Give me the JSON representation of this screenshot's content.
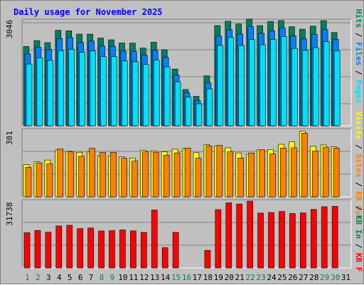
{
  "chart_data": [
    {
      "type": "bar",
      "title": "Daily usage for November 2025",
      "categories": [
        "1",
        "2",
        "3",
        "4",
        "5",
        "6",
        "7",
        "8",
        "9",
        "10",
        "11",
        "12",
        "13",
        "14",
        "15",
        "16",
        "17",
        "18",
        "19",
        "20",
        "21",
        "22",
        "23",
        "24",
        "25",
        "26",
        "27",
        "28",
        "29",
        "30",
        "31"
      ],
      "weekend_days": [
        "1",
        "2",
        "8",
        "9",
        "15",
        "16",
        "22",
        "23",
        "29",
        "30"
      ],
      "ymax_label": "3046",
      "series": [
        {
          "name": "Hits",
          "color": "#00805c",
          "values": [
            2375,
            2552,
            2490,
            2858,
            2844,
            2745,
            2745,
            2627,
            2575,
            2479,
            2475,
            2326,
            2502,
            2278,
            1700,
            1087,
            883,
            1496,
            3001,
            3130,
            3050,
            3195,
            3000,
            3125,
            3150,
            2966,
            2894,
            2982,
            3149,
            2793,
            0
          ]
        },
        {
          "name": "Files",
          "color": "#0080ff",
          "values": [
            2147,
            2354,
            2288,
            2612,
            2643,
            2494,
            2536,
            2395,
            2380,
            2239,
            2224,
            2120,
            2261,
            2049,
            1516,
            988,
            757,
            1284,
            2685,
            2874,
            2750,
            2970,
            2767,
            2847,
            2935,
            2690,
            2604,
            2736,
            2879,
            2586,
            0
          ]
        },
        {
          "name": "Pages",
          "color": "#00e0ff",
          "values": [
            1850,
            2039,
            1957,
            2251,
            2284,
            2201,
            2240,
            2070,
            2074,
            1944,
            1919,
            1837,
            1965,
            1764,
            1318,
            858,
            659,
            1108,
            2406,
            2644,
            2406,
            2583,
            2424,
            2587,
            2675,
            2318,
            2261,
            2339,
            2519,
            2247,
            0
          ]
        }
      ]
    },
    {
      "type": "bar",
      "ymax_label": "301",
      "series": [
        {
          "name": "Visits",
          "color": "#ffff00",
          "values": [
            145,
            158,
            166,
            211,
            205,
            201,
            202,
            184,
            185,
            180,
            175,
            210,
            206,
            203,
            215,
            219,
            199,
            235,
            230,
            221,
            198,
            192,
            212,
            213,
            237,
            248,
            296,
            228,
            234,
            226,
            0
          ]
        },
        {
          "name": "Sites",
          "color": "#ff8000",
          "values": [
            133,
            153,
            149,
            216,
            203,
            183,
            219,
            200,
            201,
            174,
            161,
            203,
            201,
            188,
            198,
            220,
            174,
            230,
            232,
            203,
            175,
            198,
            212,
            194,
            220,
            221,
            287,
            206,
            224,
            220,
            0
          ]
        },
        {
          "name": "KB Out",
          "color": "#ff8000",
          "values": [
            132,
            152,
            147,
            213,
            201,
            182,
            218,
            199,
            199,
            172,
            160,
            202,
            199,
            186,
            196,
            218,
            172,
            230,
            229,
            201,
            174,
            196,
            210,
            192,
            220,
            220,
            286,
            203,
            222,
            219,
            0
          ]
        }
      ]
    },
    {
      "type": "bar",
      "ymax_label": "31738",
      "series": [
        {
          "name": "KB F",
          "color": "#ff0000",
          "values": [
            17021,
            18122,
            17298,
            20290,
            20637,
            19032,
            19309,
            17883,
            18050,
            18379,
            17923,
            17183,
            28012,
            9812,
            17203,
            0,
            0,
            8500,
            28200,
            31500,
            30900,
            32300,
            26500,
            26800,
            27300,
            26300,
            26600,
            28300,
            29600,
            29800,
            0
          ]
        }
      ]
    }
  ],
  "axis_labels": {
    "top_right": [
      {
        "text": "Pages",
        "color": "#00e0ff"
      },
      {
        "text": " / ",
        "color": "#000000"
      },
      {
        "text": "Files",
        "color": "#0080ff"
      },
      {
        "text": " / ",
        "color": "#000000"
      },
      {
        "text": "Hits",
        "color": "#00805c"
      }
    ],
    "mid_right": [
      {
        "text": "Sites",
        "color": "#ff8000"
      },
      {
        "text": " / ",
        "color": "#000000"
      },
      {
        "text": "Visits",
        "color": "#ffff00"
      }
    ],
    "mid_right_prefix": [
      {
        "text": "KB Out",
        "color": "#ff8000"
      },
      {
        "text": " / ",
        "color": "#000000"
      }
    ],
    "bottom_right": [
      {
        "text": "KB F",
        "color": "#ff0000"
      },
      {
        "text": " / ",
        "color": "#000000"
      },
      {
        "text": "KB In",
        "color": "#00805c"
      },
      {
        "text": " / ",
        "color": "#000000"
      }
    ]
  },
  "colors": {
    "background": "#c0c0c0",
    "panel": "#c0c0c0",
    "grid": "#808080",
    "title": "#0000ff",
    "weekday": "#000000",
    "weekend": "#00805c"
  }
}
